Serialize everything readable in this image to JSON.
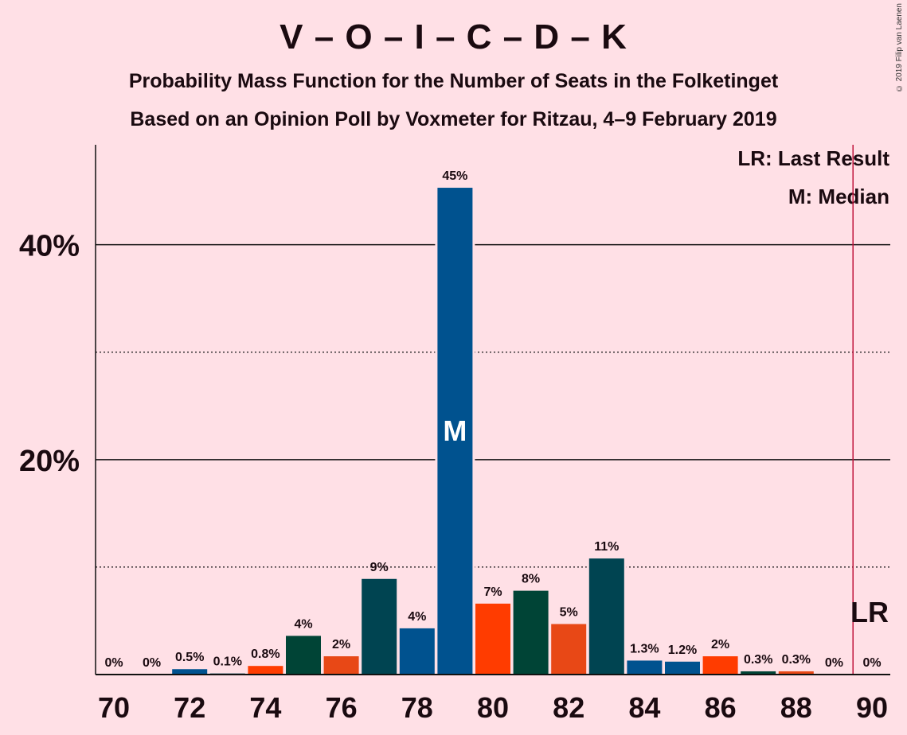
{
  "title": "V – O – I – C – D – K",
  "subtitle": "Probability Mass Function for the Number of Seats in the Folketinget",
  "subtitle2": "Based on an Opinion Poll by Voxmeter for Ritzau, 4–9 February 2019",
  "copyright": "© 2019 Filip van Laenen",
  "legend": {
    "last_result": "LR: Last Result",
    "median": "M: Median"
  },
  "colors": {
    "background": "#ffe0e6",
    "blue": "#00528f",
    "dark_teal": "#004451",
    "dark_green": "#004436",
    "orange_red": "#ff3c00",
    "orange": "#e84816",
    "lr_line": "#c0143c"
  },
  "chart_data": {
    "type": "bar",
    "x": [
      70,
      71,
      72,
      73,
      74,
      75,
      76,
      77,
      78,
      79,
      80,
      81,
      82,
      83,
      84,
      85,
      86,
      87,
      88,
      89,
      90
    ],
    "values": [
      0,
      0,
      0.5,
      0.1,
      0.8,
      3.6,
      1.7,
      8.9,
      4.3,
      45.3,
      6.6,
      7.8,
      4.7,
      10.8,
      1.3,
      1.2,
      1.7,
      0.3,
      0.3,
      0,
      0
    ],
    "labels": [
      "0%",
      "0%",
      "0.5%",
      "0.1%",
      "0.8%",
      "4%",
      "2%",
      "9%",
      "4%",
      "45%",
      "7%",
      "8%",
      "5%",
      "11%",
      "1.3%",
      "1.2%",
      "2%",
      "0.3%",
      "0.3%",
      "0%",
      "0%"
    ],
    "bar_colors": [
      "#00528f",
      "#00528f",
      "#00528f",
      "#004451",
      "#ff3c00",
      "#004436",
      "#e84816",
      "#004451",
      "#00528f",
      "#00528f",
      "#ff3c00",
      "#004436",
      "#e84816",
      "#004451",
      "#00528f",
      "#00528f",
      "#ff3c00",
      "#004436",
      "#e84816",
      "#004451",
      "#00528f"
    ],
    "x_tick_labels": [
      "70",
      "72",
      "74",
      "76",
      "78",
      "80",
      "82",
      "84",
      "86",
      "88",
      "90"
    ],
    "y_tick_labels": [
      "20%",
      "40%"
    ],
    "y_ticks": [
      20,
      40
    ],
    "dotted_gridlines": [
      10,
      30
    ],
    "ylim": [
      0,
      49.3
    ],
    "median_seat": 79,
    "median_marker": "M",
    "last_result_seat": 89.5,
    "last_result_marker": "LR"
  }
}
